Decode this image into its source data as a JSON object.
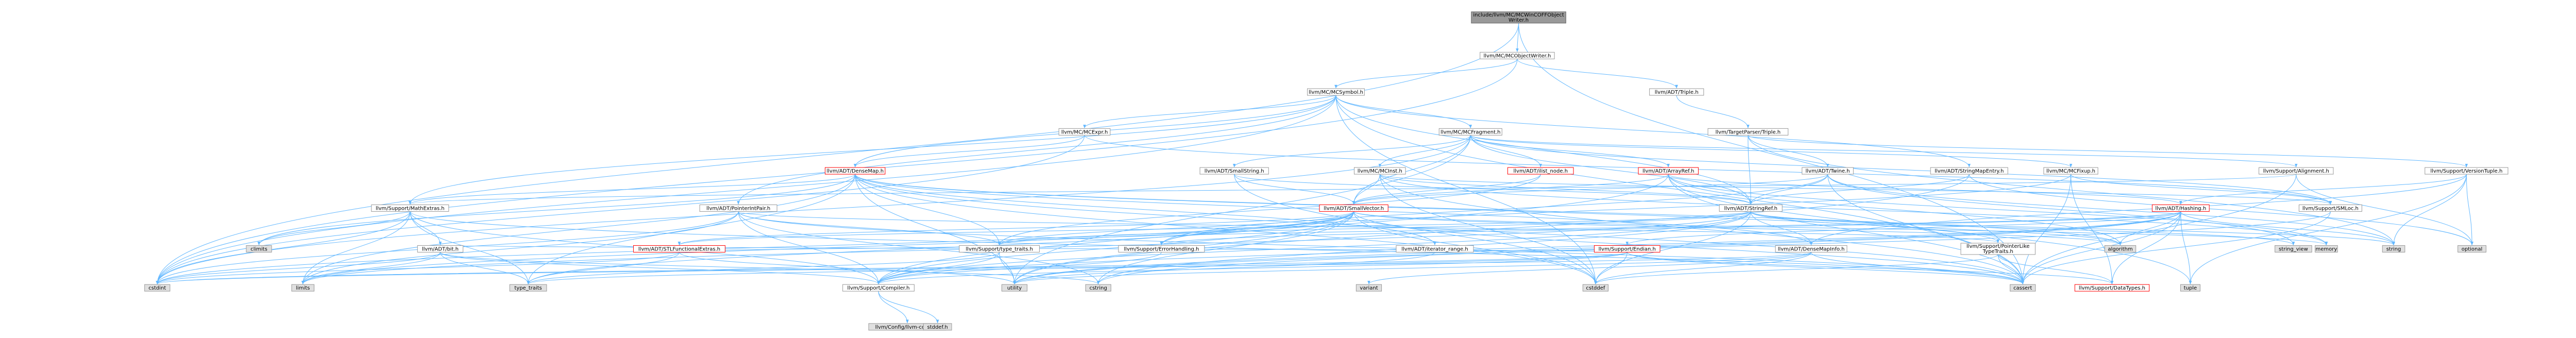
{
  "graph": {
    "nodes": [
      {
        "id": "n0",
        "lines": [
          "include/llvm/MC/MCWinCOFFObject",
          "Writer.h"
        ],
        "kind": "root"
      },
      {
        "id": "n1",
        "lines": [
          "llvm/MC/MCObjectWriter.h"
        ],
        "kind": "doc"
      },
      {
        "id": "n2",
        "lines": [
          "llvm/MC/MCSymbol.h"
        ],
        "kind": "doc"
      },
      {
        "id": "n3",
        "lines": [
          "llvm/ADT/Triple.h"
        ],
        "kind": "doc"
      },
      {
        "id": "n4",
        "lines": [
          "llvm/MC/MCExpr.h"
        ],
        "kind": "doc"
      },
      {
        "id": "n5",
        "lines": [
          "llvm/MC/MCFragment.h"
        ],
        "kind": "doc"
      },
      {
        "id": "n6",
        "lines": [
          "llvm/TargetParser/Triple.h"
        ],
        "kind": "doc"
      },
      {
        "id": "n7",
        "lines": [
          "llvm/ADT/DenseMap.h"
        ],
        "kind": "red"
      },
      {
        "id": "n8",
        "lines": [
          "llvm/ADT/SmallString.h"
        ],
        "kind": "doc"
      },
      {
        "id": "n9",
        "lines": [
          "llvm/MC/MCInst.h"
        ],
        "kind": "doc"
      },
      {
        "id": "n10",
        "lines": [
          "llvm/ADT/ilist_node.h"
        ],
        "kind": "red"
      },
      {
        "id": "n11",
        "lines": [
          "llvm/ADT/ArrayRef.h"
        ],
        "kind": "red"
      },
      {
        "id": "n12",
        "lines": [
          "llvm/ADT/Twine.h"
        ],
        "kind": "doc"
      },
      {
        "id": "n13",
        "lines": [
          "llvm/ADT/StringMapEntry.h"
        ],
        "kind": "doc"
      },
      {
        "id": "n14",
        "lines": [
          "llvm/MC/MCFixup.h"
        ],
        "kind": "doc"
      },
      {
        "id": "n15",
        "lines": [
          "llvm/Support/Alignment.h"
        ],
        "kind": "doc"
      },
      {
        "id": "n16",
        "lines": [
          "llvm/Support/VersionTuple.h"
        ],
        "kind": "doc"
      },
      {
        "id": "n17",
        "lines": [
          "llvm/ADT/PointerIntPair.h"
        ],
        "kind": "doc"
      },
      {
        "id": "n18",
        "lines": [
          "llvm/Support/MathExtras.h"
        ],
        "kind": "doc"
      },
      {
        "id": "n19",
        "lines": [
          "llvm/ADT/SmallVector.h"
        ],
        "kind": "red"
      },
      {
        "id": "n20",
        "lines": [
          "llvm/ADT/StringRef.h"
        ],
        "kind": "doc"
      },
      {
        "id": "n21",
        "lines": [
          "llvm/ADT/Hashing.h"
        ],
        "kind": "red"
      },
      {
        "id": "n22",
        "lines": [
          "llvm/Support/SMLoc.h"
        ],
        "kind": "doc"
      },
      {
        "id": "n23",
        "lines": [
          "climits"
        ],
        "kind": "sys"
      },
      {
        "id": "n24",
        "lines": [
          "llvm/ADT/bit.h"
        ],
        "kind": "doc"
      },
      {
        "id": "n25",
        "lines": [
          "llvm/ADT/STLFunctionalExtras.h"
        ],
        "kind": "red"
      },
      {
        "id": "n26",
        "lines": [
          "llvm/Support/type_traits.h"
        ],
        "kind": "doc"
      },
      {
        "id": "n27",
        "lines": [
          "llvm/Support/ErrorHandling.h"
        ],
        "kind": "doc"
      },
      {
        "id": "n28",
        "lines": [
          "llvm/ADT/iterator_range.h"
        ],
        "kind": "doc"
      },
      {
        "id": "n29",
        "lines": [
          "llvm/Support/Endian.h"
        ],
        "kind": "red"
      },
      {
        "id": "n30",
        "lines": [
          "llvm/ADT/DenseMapInfo.h"
        ],
        "kind": "doc"
      },
      {
        "id": "n31",
        "lines": [
          "llvm/Support/PointerLike",
          "TypeTraits.h"
        ],
        "kind": "doc"
      },
      {
        "id": "n32",
        "lines": [
          "algorithm"
        ],
        "kind": "sys"
      },
      {
        "id": "n33",
        "lines": [
          "string_view"
        ],
        "kind": "sys"
      },
      {
        "id": "n34",
        "lines": [
          "memory"
        ],
        "kind": "sys"
      },
      {
        "id": "n35",
        "lines": [
          "string"
        ],
        "kind": "sys"
      },
      {
        "id": "n36",
        "lines": [
          "optional"
        ],
        "kind": "sys"
      },
      {
        "id": "n37",
        "lines": [
          "cstdint"
        ],
        "kind": "sys"
      },
      {
        "id": "n38",
        "lines": [
          "limits"
        ],
        "kind": "sys"
      },
      {
        "id": "n39",
        "lines": [
          "type_traits"
        ],
        "kind": "sys"
      },
      {
        "id": "n40",
        "lines": [
          "llvm/Support/Compiler.h"
        ],
        "kind": "doc"
      },
      {
        "id": "n41",
        "lines": [
          "utility"
        ],
        "kind": "sys"
      },
      {
        "id": "n42",
        "lines": [
          "cstring"
        ],
        "kind": "sys"
      },
      {
        "id": "n43",
        "lines": [
          "variant"
        ],
        "kind": "sys"
      },
      {
        "id": "n44",
        "lines": [
          "cstddef"
        ],
        "kind": "sys"
      },
      {
        "id": "n45",
        "lines": [
          "cassert"
        ],
        "kind": "sys"
      },
      {
        "id": "n46",
        "lines": [
          "llvm/Support/DataTypes.h"
        ],
        "kind": "red"
      },
      {
        "id": "n47",
        "lines": [
          "tuple"
        ],
        "kind": "sys"
      },
      {
        "id": "n48",
        "lines": [
          "llvm/Config/llvm-config.h"
        ],
        "kind": "sys"
      },
      {
        "id": "n49",
        "lines": [
          "stddef.h"
        ],
        "kind": "sys"
      }
    ],
    "edges": [
      [
        "n0",
        "n1"
      ],
      [
        "n0",
        "n37"
      ],
      [
        "n0",
        "n45"
      ],
      [
        "n1",
        "n2"
      ],
      [
        "n1",
        "n3"
      ],
      [
        "n1",
        "n37"
      ],
      [
        "n2",
        "n4"
      ],
      [
        "n2",
        "n5"
      ],
      [
        "n2",
        "n7"
      ],
      [
        "n2",
        "n17"
      ],
      [
        "n2",
        "n18"
      ],
      [
        "n2",
        "n13"
      ],
      [
        "n2",
        "n20"
      ],
      [
        "n2",
        "n45"
      ],
      [
        "n2",
        "n44"
      ],
      [
        "n2",
        "n37"
      ],
      [
        "n3",
        "n6"
      ],
      [
        "n4",
        "n22"
      ],
      [
        "n4",
        "n7"
      ],
      [
        "n4",
        "n37"
      ],
      [
        "n5",
        "n8"
      ],
      [
        "n5",
        "n9"
      ],
      [
        "n5",
        "n10"
      ],
      [
        "n5",
        "n11"
      ],
      [
        "n5",
        "n14"
      ],
      [
        "n5",
        "n15"
      ],
      [
        "n5",
        "n19"
      ],
      [
        "n5",
        "n20"
      ],
      [
        "n5",
        "n22"
      ],
      [
        "n5",
        "n41"
      ],
      [
        "n5",
        "n37"
      ],
      [
        "n6",
        "n12"
      ],
      [
        "n6",
        "n16"
      ],
      [
        "n6",
        "n20"
      ],
      [
        "n6",
        "n35"
      ],
      [
        "n7",
        "n18"
      ],
      [
        "n7",
        "n26"
      ],
      [
        "n7",
        "n30"
      ],
      [
        "n7",
        "n28"
      ],
      [
        "n7",
        "n31"
      ],
      [
        "n7",
        "n45"
      ],
      [
        "n7",
        "n41"
      ],
      [
        "n7",
        "n32"
      ],
      [
        "n7",
        "n44"
      ],
      [
        "n7",
        "n38"
      ],
      [
        "n7",
        "n39"
      ],
      [
        "n7",
        "n23"
      ],
      [
        "n8",
        "n19"
      ],
      [
        "n8",
        "n20"
      ],
      [
        "n8",
        "n44"
      ],
      [
        "n9",
        "n19"
      ],
      [
        "n9",
        "n20"
      ],
      [
        "n9",
        "n22"
      ],
      [
        "n9",
        "n45"
      ],
      [
        "n9",
        "n44"
      ],
      [
        "n9",
        "n34"
      ],
      [
        "n10",
        "n19"
      ],
      [
        "n10",
        "n26"
      ],
      [
        "n11",
        "n19"
      ],
      [
        "n11",
        "n21"
      ],
      [
        "n11",
        "n32"
      ],
      [
        "n11",
        "n45"
      ],
      [
        "n11",
        "n34"
      ],
      [
        "n11",
        "n47"
      ],
      [
        "n11",
        "n40"
      ],
      [
        "n12",
        "n19"
      ],
      [
        "n12",
        "n20"
      ],
      [
        "n12",
        "n27"
      ],
      [
        "n12",
        "n45"
      ],
      [
        "n12",
        "n35"
      ],
      [
        "n12",
        "n33"
      ],
      [
        "n13",
        "n20"
      ],
      [
        "n13",
        "n36"
      ],
      [
        "n13",
        "n41"
      ],
      [
        "n14",
        "n22"
      ],
      [
        "n14",
        "n27"
      ],
      [
        "n14",
        "n46"
      ],
      [
        "n14",
        "n45"
      ],
      [
        "n15",
        "n18"
      ],
      [
        "n15",
        "n45"
      ],
      [
        "n15",
        "n36"
      ],
      [
        "n16",
        "n21"
      ],
      [
        "n16",
        "n36"
      ],
      [
        "n16",
        "n35"
      ],
      [
        "n16",
        "n47"
      ],
      [
        "n16",
        "n30"
      ],
      [
        "n17",
        "n31"
      ],
      [
        "n17",
        "n26"
      ],
      [
        "n17",
        "n40"
      ],
      [
        "n17",
        "n45"
      ],
      [
        "n17",
        "n37"
      ],
      [
        "n17",
        "n38"
      ],
      [
        "n17",
        "n42"
      ],
      [
        "n18",
        "n24"
      ],
      [
        "n18",
        "n40"
      ],
      [
        "n18",
        "n45"
      ],
      [
        "n18",
        "n23"
      ],
      [
        "n18",
        "n37"
      ],
      [
        "n18",
        "n38"
      ],
      [
        "n18",
        "n39"
      ],
      [
        "n19",
        "n40"
      ],
      [
        "n19",
        "n26"
      ],
      [
        "n19",
        "n32"
      ],
      [
        "n19",
        "n45"
      ],
      [
        "n19",
        "n44"
      ],
      [
        "n19",
        "n37"
      ],
      [
        "n19",
        "n42"
      ],
      [
        "n19",
        "n41"
      ],
      [
        "n19",
        "n34"
      ],
      [
        "n19",
        "n38"
      ],
      [
        "n19",
        "n39"
      ],
      [
        "n19",
        "n25"
      ],
      [
        "n19",
        "n27"
      ],
      [
        "n20",
        "n25"
      ],
      [
        "n20",
        "n30"
      ],
      [
        "n20",
        "n40"
      ],
      [
        "n20",
        "n32"
      ],
      [
        "n20",
        "n44"
      ],
      [
        "n20",
        "n42"
      ],
      [
        "n20",
        "n38"
      ],
      [
        "n20",
        "n35"
      ],
      [
        "n20",
        "n33"
      ],
      [
        "n20",
        "n26"
      ],
      [
        "n21",
        "n29"
      ],
      [
        "n21",
        "n46"
      ],
      [
        "n21",
        "n27"
      ],
      [
        "n21",
        "n26"
      ],
      [
        "n21",
        "n32"
      ],
      [
        "n21",
        "n45"
      ],
      [
        "n21",
        "n42"
      ],
      [
        "n21",
        "n35"
      ],
      [
        "n21",
        "n47"
      ],
      [
        "n21",
        "n41"
      ],
      [
        "n21",
        "n40"
      ],
      [
        "n22",
        "n45"
      ],
      [
        "n22",
        "n41"
      ],
      [
        "n24",
        "n40"
      ],
      [
        "n24",
        "n37"
      ],
      [
        "n24",
        "n39"
      ],
      [
        "n24",
        "n38"
      ],
      [
        "n24",
        "n42"
      ],
      [
        "n25",
        "n26"
      ],
      [
        "n25",
        "n41"
      ],
      [
        "n25",
        "n37"
      ],
      [
        "n25",
        "n39"
      ],
      [
        "n26",
        "n40"
      ],
      [
        "n26",
        "n39"
      ],
      [
        "n26",
        "n41"
      ],
      [
        "n27",
        "n40"
      ],
      [
        "n28",
        "n41"
      ],
      [
        "n29",
        "n40"
      ],
      [
        "n29",
        "n46"
      ],
      [
        "n29",
        "n24"
      ],
      [
        "n29",
        "n45"
      ],
      [
        "n29",
        "n44"
      ],
      [
        "n29",
        "n37"
      ],
      [
        "n29",
        "n39"
      ],
      [
        "n30",
        "n37"
      ],
      [
        "n30",
        "n44"
      ],
      [
        "n30",
        "n41"
      ],
      [
        "n30",
        "n43"
      ],
      [
        "n30",
        "n45"
      ],
      [
        "n31",
        "n46"
      ],
      [
        "n31",
        "n45"
      ],
      [
        "n31",
        "n44"
      ],
      [
        "n40",
        "n48"
      ],
      [
        "n40",
        "n49"
      ]
    ]
  }
}
